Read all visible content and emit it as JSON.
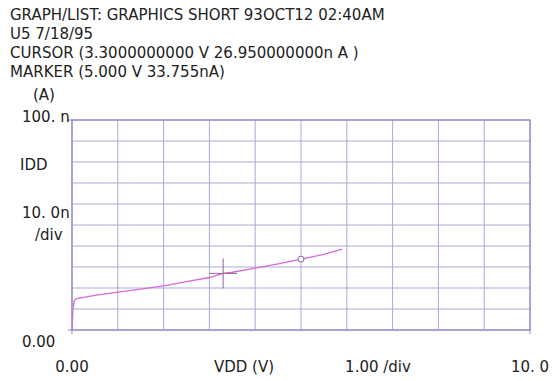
{
  "chart_data": {
    "type": "line",
    "header": [
      "GRAPH/LIST: GRAPHICS SHORT 93OCT12 02:40AM",
      "U5 7/18/95",
      "CURSOR (3.3000000000 V 26.950000000n A )",
      "MARKER (5.000 V 33.755nA)"
    ],
    "x_label": "VDD (V)",
    "y_label": "IDD",
    "y_unit": "(A)",
    "x_div": {
      "value": 1,
      "label": "1.00 /div"
    },
    "y_div": {
      "value": 10,
      "label": "10. 0n",
      "unit": "/div"
    },
    "series": [
      {
        "name": "IDD",
        "color": "#d66ad6",
        "x": [
          0,
          0.02,
          0.05,
          0.1,
          0.5,
          1,
          1.5,
          2,
          2.5,
          3,
          3.3,
          3.5,
          4,
          4.5,
          5,
          5.5,
          5.9
        ],
        "values": [
          0,
          10,
          14,
          15,
          16.5,
          18,
          19.5,
          21,
          23,
          25,
          26.95,
          27.5,
          29.5,
          31.5,
          33.755,
          36,
          38.5
        ]
      }
    ],
    "cursor": {
      "x": 3.3,
      "y": 26.95
    },
    "marker_point": {
      "x": 5,
      "y": 33.755
    },
    "xlim": [
      0,
      10
    ],
    "ylim": [
      0,
      100
    ],
    "xticks": [
      {
        "value": 0,
        "label": "0.00"
      },
      {
        "value": 10,
        "label": "10. 0"
      }
    ],
    "yticks": [
      {
        "value": 0,
        "label": "0.00"
      },
      {
        "value": 100,
        "label": "100. n"
      }
    ],
    "grid": true
  }
}
